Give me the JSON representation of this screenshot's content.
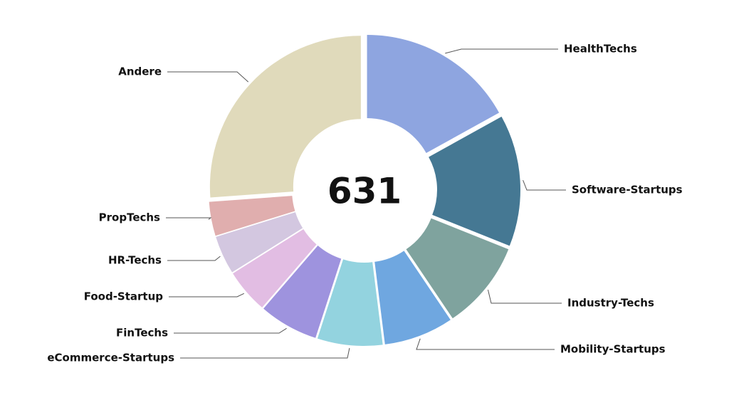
{
  "chart_data": {
    "type": "donut",
    "total": "631",
    "categories": [
      "HealthTechs",
      "Software-Startups",
      "Industry-Techs",
      "Mobility-Startups",
      "eCommerce-Startups",
      "FinTechs",
      "Food-Startup",
      "HR-Techs",
      "PropTechs",
      "Andere"
    ],
    "values": [
      107,
      89,
      60,
      47,
      44,
      40,
      30,
      26,
      23,
      165
    ],
    "colors": [
      "#8ea5e0",
      "#457893",
      "#7fa39e",
      "#6fa7e0",
      "#93d3df",
      "#9e93de",
      "#e2bde3",
      "#d3c7e0",
      "#e0aeae",
      "#e0dabb"
    ]
  }
}
